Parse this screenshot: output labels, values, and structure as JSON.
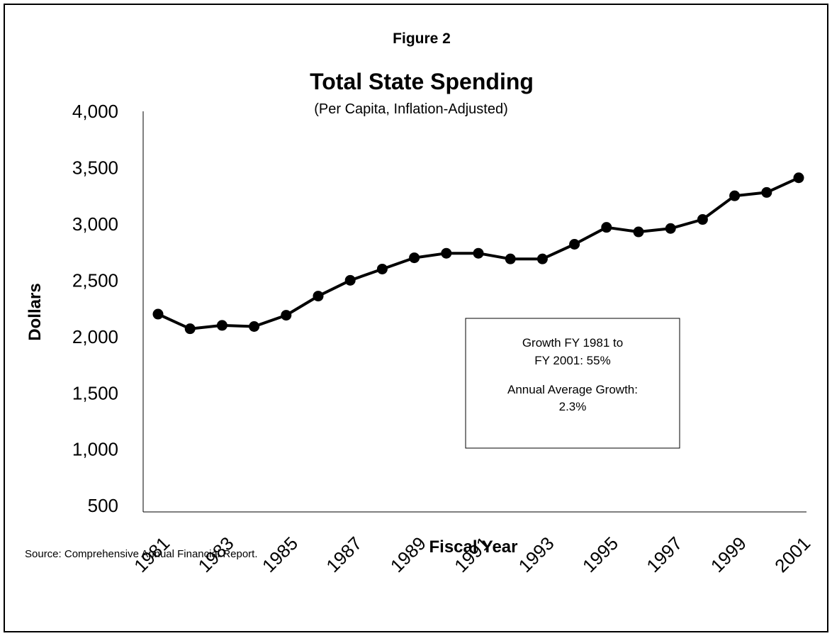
{
  "figure_label": "Figure 2",
  "source_note": "Source: Comprehensive Annual Financial Report.",
  "annotation": {
    "lines": [
      "Growth FY 1981 to",
      "FY 2001: 55%",
      "Annual Average Growth:",
      "2.3%"
    ]
  },
  "chart_data": {
    "type": "line",
    "title": "Total State Spending",
    "subtitle": "(Per Capita, Inflation-Adjusted)",
    "xlabel": "Fiscal Year",
    "ylabel": "Dollars",
    "x": [
      1981,
      1982,
      1983,
      1984,
      1985,
      1986,
      1987,
      1988,
      1989,
      1990,
      1991,
      1992,
      1993,
      1994,
      1995,
      1996,
      1997,
      1998,
      1999,
      2000,
      2001
    ],
    "x_tick_labels": [
      "1981",
      "1983",
      "1985",
      "1987",
      "1989",
      "1991",
      "1993",
      "1995",
      "1997",
      "1999",
      "2001"
    ],
    "series": [
      {
        "values": [
          2200,
          2070,
          2100,
          2090,
          2190,
          2360,
          2500,
          2600,
          2700,
          2740,
          2740,
          2690,
          2690,
          2820,
          2970,
          2930,
          2960,
          3040,
          3250,
          3280,
          3410
        ]
      }
    ],
    "ylim": [
      0,
      4000
    ],
    "y_ticks": [
      500,
      1000,
      1500,
      2000,
      2500,
      3000,
      3500,
      4000
    ],
    "y_tick_labels": [
      "500",
      "1,000",
      "1,500",
      "2,000",
      "2,500",
      "3,000",
      "3,500",
      "4,000"
    ],
    "grid": false,
    "legend": "none",
    "line_color": "#000000",
    "marker_color": "#000000"
  }
}
